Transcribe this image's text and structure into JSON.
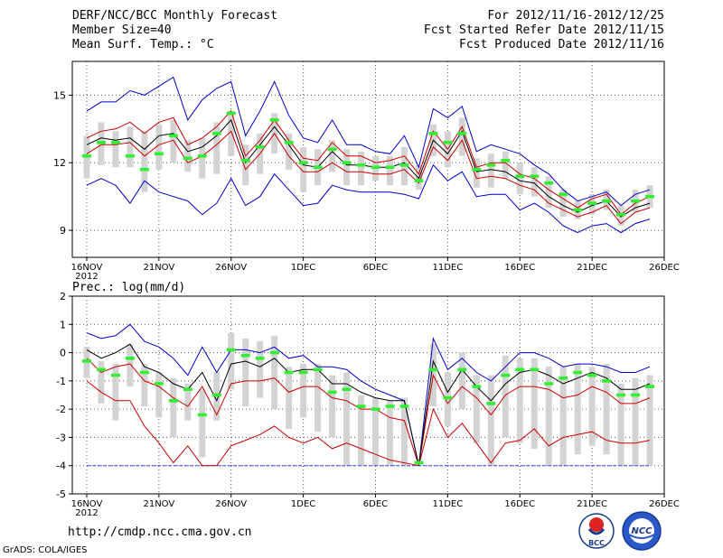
{
  "header": {
    "title": "DERF/NCC/BCC Monthly Forecast",
    "member_size": "Member Size=40",
    "variable": "Mean Surf. Temp.: °C",
    "period": "For 2012/11/16-2012/12/25",
    "refer_date": "Fcst Started Refer Date 2012/11/15",
    "produced_date": "Fcst Produced Date 2012/11/16"
  },
  "footer": {
    "url": "http://cmdp.ncc.cma.gov.cn",
    "credit": "GrADS: COLA/IGES",
    "logo_bcc": "BCC",
    "logo_ncc": "NCC"
  },
  "colors": {
    "max": "#0000cc",
    "spread": "#cc0000",
    "mean": "#000000",
    "median": "#33ee33",
    "box": "#d3d3d3",
    "floor": "#4040ff"
  },
  "x_ticks": [
    {
      "label": "16NOV",
      "sub": "2012",
      "day": 0
    },
    {
      "label": "21NOV",
      "day": 5
    },
    {
      "label": "26NOV",
      "day": 10
    },
    {
      "label": "1DEC",
      "day": 15
    },
    {
      "label": "6DEC",
      "day": 20
    },
    {
      "label": "11DEC",
      "day": 25
    },
    {
      "label": "16DEC",
      "day": 30
    },
    {
      "label": "21DEC",
      "day": 35
    },
    {
      "label": "26DEC",
      "day": 40
    }
  ],
  "chart_data": [
    {
      "type": "line",
      "title": "Mean Surf. Temp.: °C",
      "xlim": [
        -1,
        40
      ],
      "ylim": [
        7.8,
        16.5
      ],
      "yticks": [
        9,
        12,
        15
      ],
      "x": [
        0,
        1,
        2,
        3,
        4,
        5,
        6,
        7,
        8,
        9,
        10,
        11,
        12,
        13,
        14,
        15,
        16,
        17,
        18,
        19,
        20,
        21,
        22,
        23,
        24,
        25,
        26,
        27,
        28,
        29,
        30,
        31,
        32,
        33,
        34,
        35,
        36,
        37,
        38,
        39
      ],
      "series": [
        {
          "name": "upper",
          "values": [
            14.3,
            14.7,
            14.7,
            15.2,
            15.0,
            15.4,
            15.8,
            13.9,
            14.8,
            15.3,
            15.6,
            13.2,
            14.3,
            15.6,
            14.1,
            13.1,
            12.9,
            13.9,
            12.8,
            12.8,
            12.5,
            12.4,
            13.2,
            11.8,
            14.4,
            14.0,
            14.5,
            12.5,
            12.8,
            12.6,
            12.4,
            11.9,
            11.5,
            10.8,
            10.3,
            10.5,
            10.7,
            10.1,
            10.6,
            10.8
          ]
        },
        {
          "name": "spread_high",
          "values": [
            13.1,
            13.4,
            13.5,
            13.8,
            13.3,
            13.8,
            14.0,
            12.8,
            13.1,
            13.6,
            14.3,
            12.3,
            13.0,
            13.9,
            13.0,
            12.2,
            12.1,
            12.9,
            12.3,
            12.3,
            12.0,
            12.1,
            12.3,
            11.5,
            13.4,
            12.6,
            13.6,
            11.8,
            12.0,
            12.0,
            11.5,
            11.3,
            10.8,
            10.4,
            10.0,
            10.4,
            10.6,
            9.7,
            10.2,
            10.5
          ]
        },
        {
          "name": "mean",
          "values": [
            12.8,
            13.1,
            13.0,
            13.1,
            12.6,
            13.2,
            13.3,
            12.5,
            12.7,
            13.2,
            13.9,
            12.0,
            12.8,
            13.6,
            12.8,
            11.9,
            11.8,
            12.5,
            11.9,
            11.9,
            11.8,
            11.8,
            12.0,
            11.3,
            13.0,
            12.4,
            13.4,
            11.6,
            11.7,
            11.6,
            11.2,
            11.1,
            10.5,
            10.1,
            9.8,
            10.1,
            10.3,
            9.6,
            10.0,
            10.2
          ]
        },
        {
          "name": "spread_low",
          "values": [
            12.4,
            12.8,
            12.8,
            12.9,
            12.3,
            12.8,
            13.0,
            12.0,
            12.3,
            12.8,
            13.4,
            11.7,
            12.4,
            13.3,
            12.3,
            11.6,
            11.6,
            12.0,
            11.6,
            11.6,
            11.5,
            11.5,
            11.7,
            11.1,
            12.7,
            12.1,
            13.0,
            11.3,
            11.4,
            11.3,
            11.0,
            10.8,
            10.2,
            9.9,
            9.6,
            9.8,
            10.1,
            9.3,
            9.8,
            10.0
          ]
        },
        {
          "name": "lower",
          "values": [
            11.0,
            11.3,
            11.0,
            10.2,
            11.2,
            10.7,
            10.5,
            10.3,
            9.7,
            10.2,
            11.3,
            10.1,
            10.5,
            11.5,
            10.8,
            10.1,
            10.2,
            11.0,
            10.8,
            10.7,
            10.7,
            10.7,
            10.6,
            10.4,
            11.9,
            11.2,
            11.6,
            10.5,
            10.6,
            10.6,
            9.9,
            10.2,
            9.8,
            9.2,
            8.9,
            9.2,
            9.3,
            8.9,
            9.3,
            9.5
          ]
        },
        {
          "name": "median",
          "values": [
            12.3,
            12.9,
            12.9,
            12.3,
            11.7,
            12.4,
            13.2,
            12.2,
            12.3,
            13.3,
            14.2,
            12.1,
            12.7,
            13.9,
            12.9,
            12.0,
            11.8,
            12.6,
            12.0,
            11.9,
            11.8,
            11.8,
            11.9,
            11.2,
            13.3,
            12.9,
            13.3,
            11.7,
            11.9,
            12.1,
            11.4,
            11.4,
            11.1,
            10.6,
            9.9,
            10.2,
            10.3,
            9.7,
            10.3,
            10.5
          ]
        },
        {
          "name": "box_top",
          "values": [
            13.2,
            13.8,
            13.4,
            13.6,
            13.4,
            13.7,
            13.9,
            13.0,
            13.1,
            13.8,
            14.3,
            12.8,
            13.3,
            14.2,
            13.3,
            12.7,
            12.6,
            13.0,
            12.6,
            12.5,
            12.3,
            12.3,
            12.7,
            11.9,
            13.7,
            13.4,
            14.0,
            12.2,
            12.4,
            12.5,
            12.0,
            11.8,
            11.4,
            10.8,
            10.3,
            10.6,
            10.8,
            10.1,
            10.8,
            11.0
          ]
        },
        {
          "name": "box_bottom",
          "values": [
            11.3,
            11.9,
            11.8,
            11.8,
            10.7,
            11.7,
            12.0,
            11.6,
            11.3,
            11.5,
            12.3,
            11.0,
            11.5,
            12.4,
            11.7,
            10.7,
            11.0,
            11.6,
            11.0,
            11.0,
            11.2,
            11.0,
            11.0,
            10.8,
            12.3,
            11.8,
            12.3,
            10.9,
            10.9,
            11.3,
            10.6,
            10.5,
            10.0,
            9.6,
            9.5,
            9.7,
            9.9,
            9.2,
            9.8,
            10.0
          ]
        }
      ]
    },
    {
      "type": "line",
      "title": "Prec.: log(mm/d)",
      "xlim": [
        -1,
        40
      ],
      "ylim": [
        -5,
        2
      ],
      "yticks": [
        -5,
        -4,
        -3,
        -2,
        -1,
        0,
        1,
        2
      ],
      "floor": -4,
      "x": [
        0,
        1,
        2,
        3,
        4,
        5,
        6,
        7,
        8,
        9,
        10,
        11,
        12,
        13,
        14,
        15,
        16,
        17,
        18,
        19,
        20,
        21,
        22,
        23,
        24,
        25,
        26,
        27,
        28,
        29,
        30,
        31,
        32,
        33,
        34,
        35,
        36,
        37,
        38,
        39
      ],
      "series": [
        {
          "name": "upper",
          "values": [
            0.7,
            0.5,
            0.6,
            1.0,
            0.4,
            0.2,
            -0.2,
            -0.8,
            0.2,
            -0.7,
            0.1,
            0.1,
            0.0,
            0.2,
            -0.2,
            -0.1,
            -0.5,
            -0.5,
            -0.6,
            -1.0,
            -1.3,
            -1.5,
            -1.7,
            -4.0,
            0.5,
            -0.6,
            -0.2,
            -0.7,
            -1.0,
            -0.5,
            0.0,
            0.0,
            -0.2,
            -0.5,
            -0.4,
            -0.4,
            -0.5,
            -0.7,
            -0.7,
            -0.5
          ]
        },
        {
          "name": "mean",
          "values": [
            0.1,
            -0.2,
            0.0,
            0.3,
            -0.5,
            -0.7,
            -1.1,
            -1.3,
            -0.7,
            -1.7,
            -0.4,
            -0.3,
            -0.5,
            -0.2,
            -0.7,
            -0.6,
            -0.6,
            -1.1,
            -1.1,
            -1.4,
            -1.6,
            -1.7,
            -1.7,
            -4.0,
            -0.3,
            -1.4,
            -0.6,
            -1.2,
            -1.7,
            -1.1,
            -0.7,
            -0.6,
            -0.8,
            -1.1,
            -0.9,
            -0.7,
            -0.9,
            -1.3,
            -1.3,
            -1.1
          ]
        },
        {
          "name": "spread_high",
          "values": [
            -0.2,
            -0.7,
            -0.5,
            -0.4,
            -1.0,
            -1.2,
            -1.6,
            -1.9,
            -1.2,
            -2.2,
            -1.1,
            -1.0,
            -1.0,
            -0.9,
            -1.4,
            -1.2,
            -1.2,
            -1.6,
            -1.7,
            -2.0,
            -2.0,
            -2.3,
            -2.4,
            -4.0,
            -0.8,
            -1.8,
            -1.2,
            -1.6,
            -2.2,
            -1.5,
            -1.2,
            -1.2,
            -1.3,
            -1.6,
            -1.5,
            -1.2,
            -1.4,
            -1.8,
            -1.8,
            -1.6
          ]
        },
        {
          "name": "spread_low",
          "values": [
            -1.0,
            -1.4,
            -1.7,
            -1.7,
            -2.6,
            -3.2,
            -3.9,
            -3.3,
            -4.0,
            -4.0,
            -3.3,
            -3.1,
            -2.9,
            -2.6,
            -3.0,
            -3.2,
            -3.0,
            -3.4,
            -3.2,
            -3.4,
            -3.6,
            -3.8,
            -3.9,
            -4.0,
            -2.0,
            -3.0,
            -2.5,
            -3.2,
            -3.9,
            -3.2,
            -3.1,
            -2.7,
            -3.3,
            -3.0,
            -2.9,
            -2.8,
            -3.1,
            -3.2,
            -3.2,
            -3.1
          ]
        },
        {
          "name": "median",
          "values": [
            -0.3,
            -0.6,
            -0.8,
            -0.2,
            -0.7,
            -1.1,
            -1.7,
            -1.3,
            -2.2,
            -1.5,
            0.1,
            -0.1,
            -0.2,
            0.0,
            -0.7,
            -0.7,
            -0.6,
            -1.4,
            -1.3,
            -1.9,
            -2.0,
            -1.9,
            -1.9,
            -3.9,
            -0.6,
            -1.6,
            -0.6,
            -1.2,
            -1.8,
            -0.8,
            -0.6,
            -0.6,
            -1.1,
            -0.9,
            -0.7,
            -0.8,
            -1.0,
            -1.5,
            -1.5,
            -1.2
          ]
        },
        {
          "name": "box_top",
          "values": [
            0.2,
            -0.3,
            -0.4,
            0.3,
            -0.4,
            -0.7,
            -0.9,
            -1.1,
            -1.3,
            -0.7,
            0.7,
            0.5,
            0.4,
            0.6,
            -0.5,
            -0.4,
            -0.4,
            -0.8,
            -0.7,
            -1.5,
            -1.6,
            -1.7,
            -1.6,
            -4.0,
            0.3,
            -0.7,
            0.0,
            -0.8,
            -0.8,
            -0.1,
            -0.2,
            -0.2,
            -0.5,
            -0.5,
            -0.4,
            -0.5,
            -0.4,
            -1.1,
            -0.9,
            -0.8
          ]
        },
        {
          "name": "box_bottom",
          "values": [
            -0.9,
            -1.8,
            -2.4,
            -1.2,
            -1.9,
            -2.3,
            -3.0,
            -2.4,
            -3.7,
            -2.4,
            -1.3,
            -1.9,
            -1.6,
            -2.0,
            -2.7,
            -2.3,
            -2.8,
            -3.0,
            -4.0,
            -4.0,
            -4.0,
            -4.0,
            -4.0,
            -4.0,
            -1.9,
            -2.6,
            -2.0,
            -3.2,
            -4.0,
            -3.0,
            -3.2,
            -3.4,
            -4.0,
            -4.0,
            -3.6,
            -3.3,
            -3.6,
            -4.0,
            -4.0,
            -4.0
          ]
        }
      ]
    }
  ]
}
